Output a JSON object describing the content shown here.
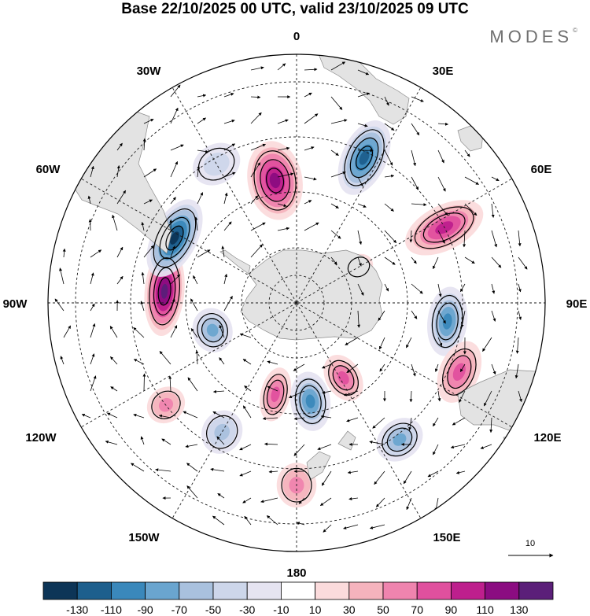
{
  "title": "Base 22/10/2025 00 UTC, valid 23/10/2025 09 UTC",
  "brand": "MODES",
  "brand_mark": "©",
  "lon_labels": {
    "top": "0",
    "top_right": "30E",
    "upper_right": "60E",
    "right": "90E",
    "lower_right": "120E",
    "bottom_right": "150E",
    "bottom": "180",
    "bottom_left": "150W",
    "lower_left": "120W",
    "left": "90W",
    "upper_left": "60W",
    "top_left": "30W"
  },
  "vector_reference": {
    "value": "10"
  },
  "colorbar": {
    "colors": [
      "#0d3557",
      "#1d5f8d",
      "#3a88bb",
      "#6aa5cf",
      "#a9c1de",
      "#cdd6ea",
      "#e6e4f1",
      "#ffffff",
      "#fbdbdc",
      "#f5b3bd",
      "#ef84ae",
      "#e0509e",
      "#be1f8d",
      "#8b0c81",
      "#5b1f79"
    ],
    "labels": [
      "-130",
      "-110",
      "-90",
      "-70",
      "-50",
      "-30",
      "-10",
      "10",
      "30",
      "50",
      "70",
      "90",
      "110",
      "130"
    ]
  },
  "anomalies": [
    {
      "lon": 350,
      "colat": 45,
      "sign": 1,
      "level": 5,
      "rx": 0.11,
      "ry": 0.16
    },
    {
      "lon": 25,
      "colat": 58,
      "sign": -1,
      "level": 5,
      "rx": 0.09,
      "ry": 0.16
    },
    {
      "lon": 63,
      "colat": 60,
      "sign": 1,
      "level": 4,
      "rx": 0.09,
      "ry": 0.17
    },
    {
      "lon": 97,
      "colat": 55,
      "sign": -1,
      "level": 4,
      "rx": 0.14,
      "ry": 0.08
    },
    {
      "lon": 113,
      "colat": 64,
      "sign": 1,
      "level": 3,
      "rx": 0.13,
      "ry": 0.08
    },
    {
      "lon": 143,
      "colat": 62,
      "sign": -1,
      "level": 3,
      "rx": 0.1,
      "ry": 0.08
    },
    {
      "lon": 148,
      "colat": 32,
      "sign": 1,
      "level": 3,
      "rx": 0.07,
      "ry": 0.1
    },
    {
      "lon": 172,
      "colat": 36,
      "sign": -1,
      "level": 4,
      "rx": 0.08,
      "ry": 0.12
    },
    {
      "lon": 193,
      "colat": 34,
      "sign": 1,
      "level": 3,
      "rx": 0.06,
      "ry": 0.11
    },
    {
      "lon": 180,
      "colat": 66,
      "sign": 1,
      "level": 2,
      "rx": 0.08,
      "ry": 0.09
    },
    {
      "lon": 210,
      "colat": 54,
      "sign": -1,
      "level": 2,
      "rx": 0.08,
      "ry": 0.09
    },
    {
      "lon": 232,
      "colat": 60,
      "sign": 1,
      "level": 2,
      "rx": 0.07,
      "ry": 0.08
    },
    {
      "lon": 252,
      "colat": 32,
      "sign": -1,
      "level": 3,
      "rx": 0.09,
      "ry": 0.08
    },
    {
      "lon": 275,
      "colat": 48,
      "sign": 1,
      "level": 6,
      "rx": 0.18,
      "ry": 0.08
    },
    {
      "lon": 298,
      "colat": 50,
      "sign": -1,
      "level": 6,
      "rx": 0.17,
      "ry": 0.09
    },
    {
      "lon": 330,
      "colat": 58,
      "sign": -1,
      "level": 1,
      "rx": 0.1,
      "ry": 0.08
    },
    {
      "lon": 60,
      "colat": 26,
      "sign": 1,
      "level": 1,
      "rx": 0.05,
      "ry": 0.06
    }
  ]
}
